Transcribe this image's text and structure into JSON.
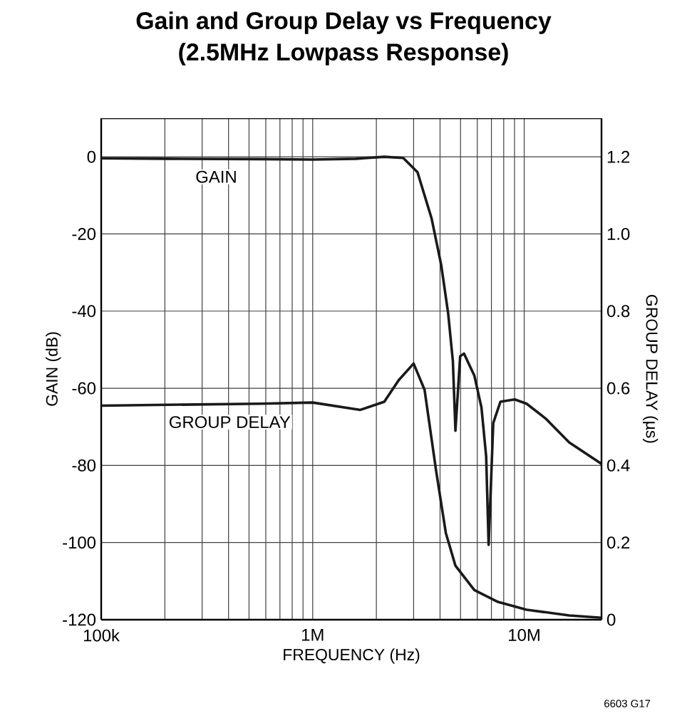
{
  "chart_data": {
    "type": "line",
    "title": "Gain and Group Delay vs Frequency",
    "subtitle": "(2.5MHz Lowpass Response)",
    "xlabel": "FREQUENCY (Hz)",
    "ylabel": "GAIN (dB)",
    "y2label": "GROUP DELAY (µs)",
    "log": "x",
    "grid": true,
    "marker": "none",
    "line_style": "solid",
    "xlim": [
      100000,
      23200000
    ],
    "xticks": [
      {
        "value": 100000,
        "label": "100k"
      },
      {
        "value": 1000000,
        "label": "1M"
      },
      {
        "value": 10000000,
        "label": "10M"
      }
    ],
    "ylim": [
      -120,
      10
    ],
    "yticks": [
      0,
      -20,
      -40,
      -60,
      -80,
      -100,
      -120
    ],
    "y2lim": [
      0,
      1.3
    ],
    "y2ticks": [
      0,
      0.2,
      0.4,
      0.6,
      0.8,
      {
        "value": 1.0,
        "label": "1.0"
      },
      1.2
    ],
    "series": [
      {
        "color": "#1a1a1a",
        "x": [
          100000,
          202000,
          568000,
          1000000,
          1600000,
          2180000,
          2680000,
          3130000,
          3650000,
          4050000,
          4370000,
          4600000,
          4730000,
          4980000,
          5190000,
          5810000,
          6280000,
          6610000,
          6790000,
          7140000,
          7720000,
          9020000,
          10260000,
          12600000,
          16300000,
          23200000
        ],
        "values": [
          -0.4,
          -0.5,
          -0.6,
          -0.7,
          -0.5,
          0,
          -0.3,
          -4,
          -16,
          -28,
          -40.6,
          -53,
          -71,
          -51.7,
          -51,
          -56.7,
          -65,
          -77.7,
          -100.6,
          -69,
          -63.5,
          -62.9,
          -64,
          -67.8,
          -74,
          -79.6
        ]
      },
      {
        "color": "#1a1a1a",
        "axis": "y2",
        "x": [
          100000,
          568000,
          1000000,
          1680000,
          2180000,
          2550000,
          3000000,
          3380000,
          3840000,
          4260000,
          4730000,
          5810000,
          7520000,
          10260000,
          16300000,
          23200000
        ],
        "values": [
          0.555,
          0.56,
          0.563,
          0.544,
          0.565,
          0.621,
          0.664,
          0.596,
          0.383,
          0.225,
          0.14,
          0.077,
          0.046,
          0.026,
          0.011,
          0.005
        ]
      }
    ],
    "annotations": [
      {
        "text": "GAIN",
        "x": 350000,
        "y": -0.6
      },
      {
        "text": "GROUP DELAY",
        "x": 405000,
        "y": -64.2
      },
      "6603 G17"
    ]
  }
}
